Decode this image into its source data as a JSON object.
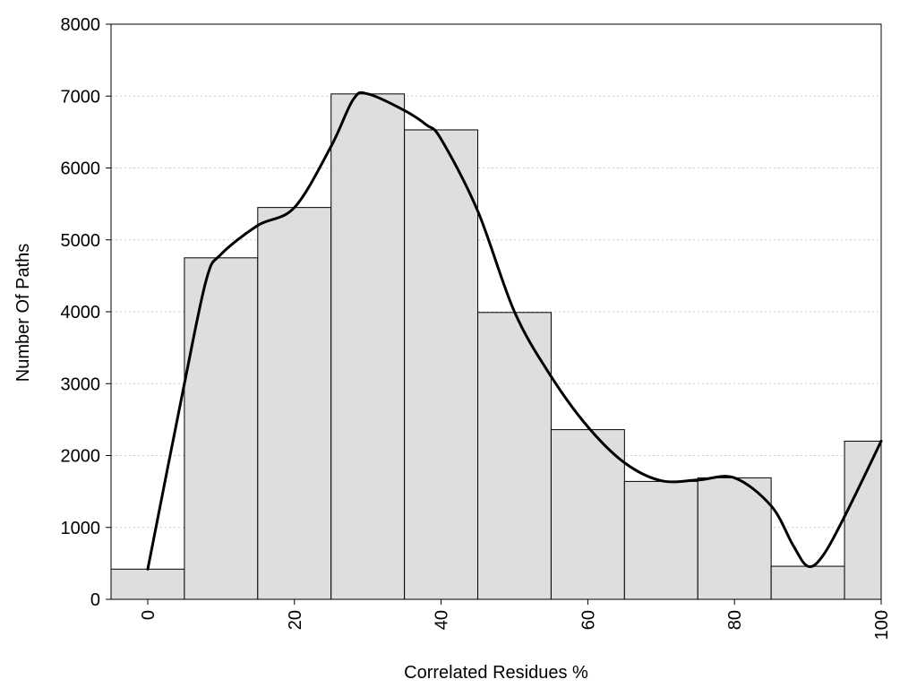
{
  "chart_data": {
    "type": "bar",
    "title": "",
    "xlabel": "Correlated Residues %",
    "ylabel": "Number Of Paths",
    "xlim": [
      -5,
      100
    ],
    "ylim": [
      0,
      8000
    ],
    "x_ticks": [
      {
        "value": 0,
        "label": "0"
      },
      {
        "value": 20,
        "label": "20"
      },
      {
        "value": 40,
        "label": "40"
      },
      {
        "value": 60,
        "label": "60"
      },
      {
        "value": 80,
        "label": "80"
      },
      {
        "value": 100,
        "label": "100"
      }
    ],
    "y_ticks": [
      {
        "value": 0,
        "label": "0"
      },
      {
        "value": 1000,
        "label": "1000"
      },
      {
        "value": 2000,
        "label": "2000"
      },
      {
        "value": 3000,
        "label": "3000"
      },
      {
        "value": 4000,
        "label": "4000"
      },
      {
        "value": 5000,
        "label": "5000"
      },
      {
        "value": 6000,
        "label": "6000"
      },
      {
        "value": 7000,
        "label": "7000"
      },
      {
        "value": 8000,
        "label": "8000"
      }
    ],
    "bin_width": 10,
    "bins": [
      {
        "center": 0,
        "value": 420
      },
      {
        "center": 10,
        "value": 4750
      },
      {
        "center": 20,
        "value": 5450
      },
      {
        "center": 30,
        "value": 7030
      },
      {
        "center": 40,
        "value": 6530
      },
      {
        "center": 50,
        "value": 3990
      },
      {
        "center": 60,
        "value": 2360
      },
      {
        "center": 70,
        "value": 1640
      },
      {
        "center": 80,
        "value": 1690
      },
      {
        "center": 90,
        "value": 460
      },
      {
        "center": 100,
        "value": 2200
      }
    ],
    "curve": {
      "x": [
        0,
        5,
        8,
        10,
        15,
        20,
        25,
        28,
        30,
        35,
        38,
        40,
        45,
        50,
        55,
        60,
        65,
        70,
        75,
        80,
        85,
        88,
        90,
        92,
        95,
        100
      ],
      "y": [
        420,
        3000,
        4450,
        4800,
        5200,
        5450,
        6300,
        6950,
        7030,
        6800,
        6600,
        6400,
        5400,
        4000,
        3100,
        2400,
        1900,
        1650,
        1660,
        1690,
        1300,
        750,
        460,
        600,
        1150,
        2200
      ]
    },
    "grid": {
      "y": true,
      "x": false,
      "style": "dotted"
    },
    "colors": {
      "bar_fill": "#dedede",
      "bar_stroke": "#000000",
      "curve": "#000000",
      "grid": "#c8c8c8",
      "frame": "#000000"
    }
  }
}
